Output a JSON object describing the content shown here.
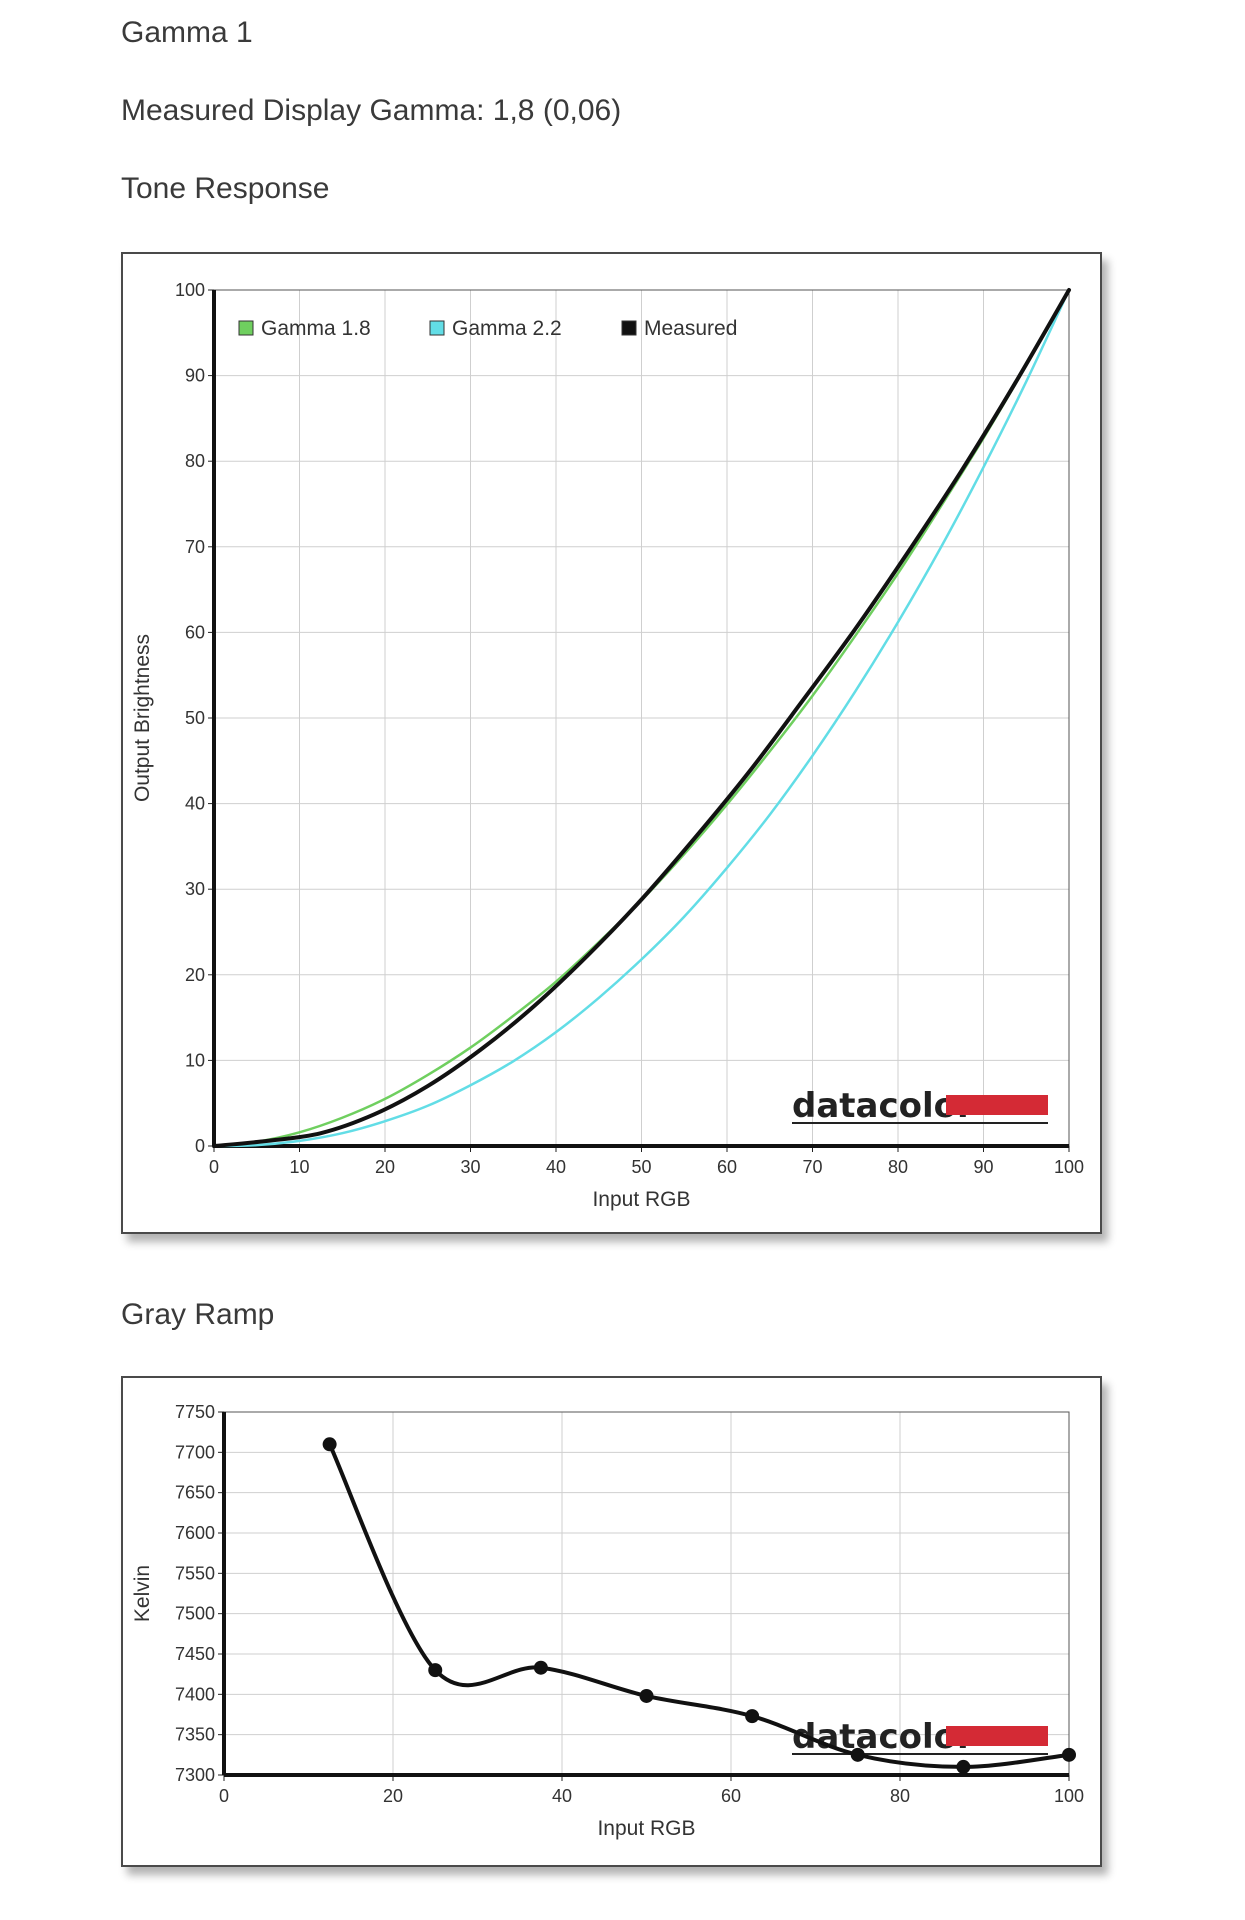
{
  "page": {
    "gamma_heading": "Gamma 1",
    "measured_heading": "Measured Display Gamma: 1,8 (0,06)",
    "tone_heading": "Tone Response",
    "gray_heading": "Gray Ramp"
  },
  "logo": {
    "text": "datacolor",
    "accent_color": "#d42a35"
  },
  "chart_data": [
    {
      "type": "line",
      "title": "Tone Response",
      "xlabel": "Input RGB",
      "ylabel": "Output Brightness",
      "xlim": [
        0,
        100
      ],
      "ylim": [
        0,
        100
      ],
      "x_ticks": [
        0,
        10,
        20,
        30,
        40,
        50,
        60,
        70,
        80,
        90,
        100
      ],
      "y_ticks": [
        0,
        10,
        20,
        30,
        40,
        50,
        60,
        70,
        80,
        90,
        100
      ],
      "grid": true,
      "legend_position": "top-left",
      "series": [
        {
          "name": "Gamma 1.8",
          "color": "#6fcf5f",
          "x": [
            0,
            5,
            10,
            15,
            20,
            25,
            30,
            35,
            40,
            45,
            50,
            55,
            60,
            65,
            70,
            75,
            80,
            85,
            90,
            95,
            100
          ],
          "y": [
            0,
            0.5,
            1.6,
            3.3,
            5.5,
            8.3,
            11.5,
            15.2,
            19.2,
            23.8,
            28.7,
            34.1,
            39.9,
            46.1,
            52.6,
            59.6,
            66.9,
            74.7,
            82.7,
            91.2,
            100
          ]
        },
        {
          "name": "Gamma 2.2",
          "color": "#62dde6",
          "x": [
            0,
            5,
            10,
            15,
            20,
            25,
            30,
            35,
            40,
            45,
            50,
            55,
            60,
            65,
            70,
            75,
            80,
            85,
            90,
            95,
            100
          ],
          "y": [
            0,
            0.1,
            0.6,
            1.5,
            2.9,
            4.7,
            7.1,
            9.9,
            13.3,
            17.3,
            21.8,
            26.8,
            32.5,
            38.7,
            45.6,
            53.1,
            61.2,
            69.9,
            79.3,
            89.3,
            100
          ]
        },
        {
          "name": "Measured",
          "color": "#111111",
          "x": [
            0,
            6.25,
            12.5,
            18.75,
            25,
            31.25,
            37.5,
            43.75,
            50,
            56.25,
            62.5,
            68.75,
            75,
            81.25,
            87.5,
            93.75,
            100
          ],
          "y": [
            0,
            0.6,
            1.5,
            3.7,
            7.0,
            11.3,
            16.4,
            22.3,
            28.8,
            36.0,
            43.6,
            51.9,
            60.4,
            69.5,
            79.0,
            89.2,
            100
          ]
        }
      ]
    },
    {
      "type": "line",
      "title": "Gray Ramp",
      "xlabel": "Input RGB",
      "ylabel": "Kelvin",
      "xlim": [
        0,
        100
      ],
      "ylim": [
        7300,
        7750
      ],
      "x_ticks": [
        0,
        20,
        40,
        60,
        80,
        100
      ],
      "y_ticks": [
        7300,
        7350,
        7400,
        7450,
        7500,
        7550,
        7600,
        7650,
        7700,
        7750
      ],
      "grid": true,
      "series": [
        {
          "color": "#111111",
          "x": [
            12.5,
            25,
            37.5,
            50,
            62.5,
            75,
            87.5,
            100
          ],
          "y": [
            7710,
            7430,
            7433,
            7398,
            7373,
            7325,
            7310,
            7325
          ]
        }
      ]
    }
  ]
}
